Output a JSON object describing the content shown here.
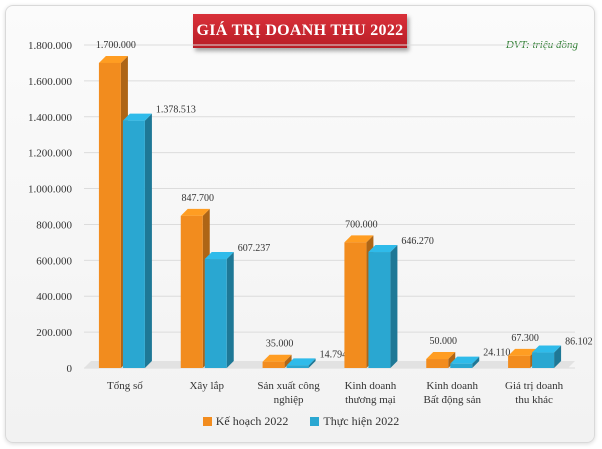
{
  "chart_data": {
    "type": "bar",
    "title": "GIÁ TRỊ DOANH THU 2022",
    "unit_note": "ĐVT: triệu đồng",
    "categories": [
      [
        "Tổng số"
      ],
      [
        "Xây lắp"
      ],
      [
        "Sản xuất công",
        "nghiệp"
      ],
      [
        "Kinh doanh",
        "thương mại"
      ],
      [
        "Kinh doanh",
        "Bất động sản"
      ],
      [
        "Giá trị doanh",
        "thu khác"
      ]
    ],
    "series": [
      {
        "name": "Kế hoạch 2022",
        "color": "#f28c1e",
        "values": [
          1700000,
          847700,
          35000,
          700000,
          50000,
          67300
        ],
        "labels": [
          "1.700.000",
          "847.700",
          "35.000",
          "700.000",
          "50.000",
          "67.300"
        ]
      },
      {
        "name": "Thực hiện 2022",
        "color": "#2aa7d1",
        "values": [
          1378513,
          607237,
          14794,
          646270,
          24110,
          86102
        ],
        "labels": [
          "1.378.513",
          "607.237",
          "14.794",
          "646.270",
          "24.110",
          "86.102"
        ]
      }
    ],
    "ylim": [
      0,
      1800000
    ],
    "yticks": [
      0,
      200000,
      400000,
      600000,
      800000,
      1000000,
      1200000,
      1400000,
      1600000,
      1800000
    ],
    "ytick_labels": [
      "0",
      "200.000",
      "400.000",
      "600.000",
      "800.000",
      "1.000.000",
      "1.200.000",
      "1.400.000",
      "1.600.000",
      "1.800.000"
    ],
    "grid": true,
    "legend_position": "bottom"
  }
}
